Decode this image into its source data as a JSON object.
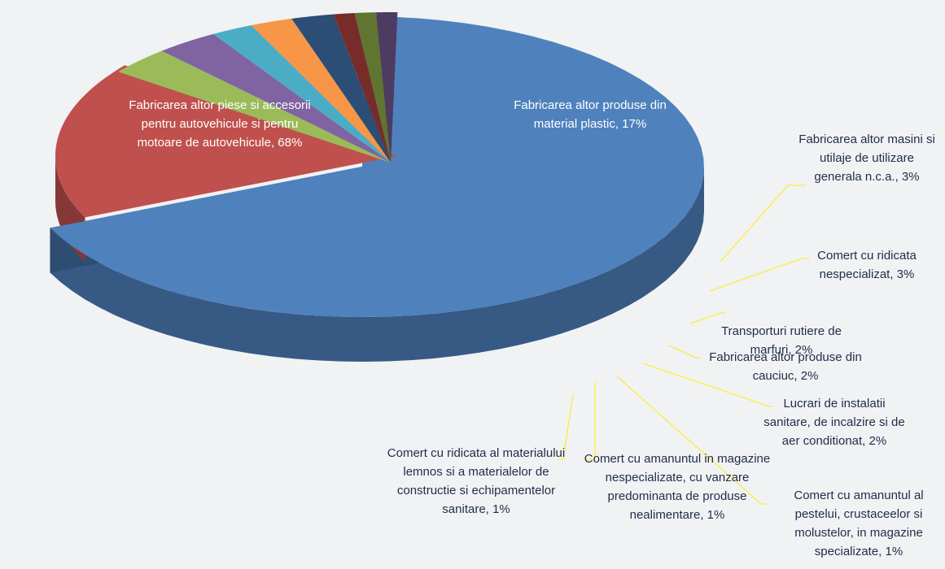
{
  "chart_data": {
    "type": "pie",
    "values": [
      68,
      17,
      3,
      3,
      2,
      2,
      2,
      1,
      1,
      1
    ],
    "value_labels": [
      "Fabricarea altor piese si accesorii pentru autovehicule si pentru motoare de autovehicule, 68%",
      "Fabricarea altor produse din material plastic, 17%",
      "Fabricarea altor masini si utilaje de utilizare generala n.c.a., 3%",
      "Comert cu ridicata nespecializat, 3%",
      "Transporturi rutiere de marfuri, 2%",
      "Fabricarea altor produse din cauciuc, 2%",
      "Lucrari de instalatii sanitare, de incalzire si de aer conditionat, 2%",
      "Comert cu amanuntul al pestelui, crustaceelor si molustelor, in magazine specializate, 1%",
      "Comert cu amanuntul in magazine nespecializate, cu vanzare predominanta de produse nealimentare, 1%",
      "Comert cu ridicata al materialului lemnos si a materialelor de constructie si echipamentelor sanitare, 1%"
    ],
    "colors": [
      "#4f81bd",
      "#c0504d",
      "#9bbb59",
      "#8064a2",
      "#4bacc6",
      "#f79646",
      "#2c4d75",
      "#772c2a",
      "#5f7530",
      "#4d3b62"
    ]
  }
}
